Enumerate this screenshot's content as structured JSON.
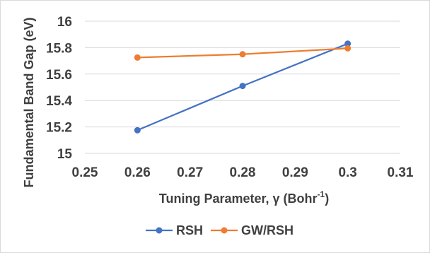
{
  "chart_data": {
    "type": "line",
    "xlabel_main": "Tuning Parameter, γ (Bohr",
    "xlabel_sup": "-1",
    "xlabel_end": ")",
    "ylabel": "Fundamental Band Gap (eV)",
    "xlim": [
      0.25,
      0.31
    ],
    "ylim": [
      15,
      16
    ],
    "xticks": [
      0.25,
      0.26,
      0.27,
      0.28,
      0.29,
      0.3,
      0.31
    ],
    "xtick_labels": [
      "0.25",
      "0.26",
      "0.27",
      "0.28",
      "0.29",
      "0.3",
      "0.31"
    ],
    "yticks": [
      15,
      15.2,
      15.4,
      15.6,
      15.8,
      16
    ],
    "ytick_labels": [
      "15",
      "15.2",
      "15.4",
      "15.6",
      "15.8",
      "16"
    ],
    "grid": "horizontal",
    "legend_position": "bottom",
    "series": [
      {
        "name": "RSH",
        "color": "#4472c4",
        "x": [
          0.26,
          0.28,
          0.3
        ],
        "y": [
          15.175,
          15.51,
          15.83
        ]
      },
      {
        "name": "GW/RSH",
        "color": "#ed7d31",
        "x": [
          0.26,
          0.28,
          0.3
        ],
        "y": [
          15.725,
          15.75,
          15.795
        ]
      }
    ]
  }
}
